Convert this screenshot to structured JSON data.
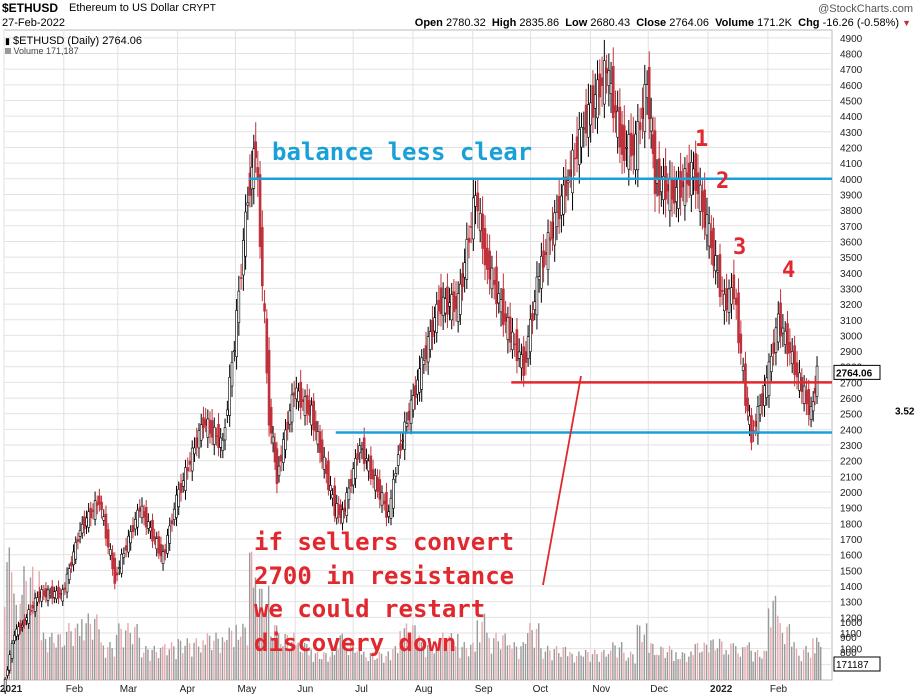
{
  "header": {
    "symbol": "$ETHUSD",
    "description": "Ethereum to US Dollar",
    "exchange": "CRYPT",
    "date": "27-Feb-2022",
    "brand": "@StockCharts.com",
    "open_label": "Open",
    "open": "2780.32",
    "high_label": "High",
    "high": "2835.86",
    "low_label": "Low",
    "low": "2680.43",
    "close_label": "Close",
    "close": "2764.06",
    "volume_label": "Volume",
    "volume": "171.2K",
    "chg_label": "Chg",
    "chg": "-16.26 (-0.58%)"
  },
  "legend": {
    "price": "$ETHUSD (Daily) 2764.06",
    "volume": "Volume 171,187"
  },
  "chart_data": {
    "type": "line",
    "style": "candlestick (daily)",
    "x_labels": [
      "2021",
      "Feb",
      "Mar",
      "Apr",
      "May",
      "Jun",
      "Jul",
      "Aug",
      "Sep",
      "Oct",
      "Nov",
      "Dec",
      "2022",
      "Feb"
    ],
    "y_ticks": [
      "900",
      "1000",
      "1100",
      "1200",
      "1300",
      "1400",
      "1500",
      "1600",
      "1700",
      "1800",
      "1900",
      "2000",
      "2100",
      "2200",
      "2300",
      "2400",
      "2500",
      "2600",
      "2700",
      "2800",
      "2900",
      "3000",
      "3100",
      "3200",
      "3300",
      "3400",
      "3500",
      "3600",
      "3700",
      "3800",
      "3900",
      "4000",
      "4100",
      "4200",
      "4300",
      "4400",
      "4500",
      "4600",
      "4700",
      "4800",
      "4900"
    ],
    "volume_ticks": [
      "800",
      "900",
      "1000"
    ],
    "ylim": [
      800,
      4950
    ],
    "last_price_label": "2764.06",
    "volume_last_label": "171187",
    "right_cut_label": "3.52",
    "series": [
      {
        "dates": [
          "2021-01-01",
          "2021-01-07",
          "2021-01-11",
          "2021-01-20",
          "2021-02-01",
          "2021-02-10",
          "2021-02-20",
          "2021-02-28",
          "2021-03-13",
          "2021-03-25",
          "2021-04-01",
          "2021-04-15",
          "2021-04-25",
          "2021-05-01",
          "2021-05-08",
          "2021-05-12",
          "2021-05-19",
          "2021-05-23",
          "2021-06-01",
          "2021-06-10",
          "2021-06-22",
          "2021-06-26",
          "2021-07-05",
          "2021-07-20",
          "2021-07-25",
          "2021-08-05",
          "2021-08-15",
          "2021-08-25",
          "2021-09-03",
          "2021-09-08",
          "2021-09-21",
          "2021-09-28",
          "2021-10-06",
          "2021-10-21",
          "2021-10-28",
          "2021-11-10",
          "2021-11-18",
          "2021-11-25",
          "2021-12-01",
          "2021-12-05",
          "2021-12-15",
          "2021-12-25",
          "2022-01-01",
          "2022-01-10",
          "2022-01-15",
          "2022-01-21",
          "2022-01-24",
          "2022-02-01",
          "2022-02-07",
          "2022-02-13",
          "2022-02-18",
          "2022-02-24",
          "2022-02-27"
        ],
        "values": [
          730,
          1100,
          1150,
          1350,
          1350,
          1760,
          1950,
          1450,
          1900,
          1580,
          1950,
          2450,
          2300,
          2950,
          3900,
          4200,
          2500,
          2100,
          2650,
          2500,
          1900,
          1850,
          2300,
          1850,
          2250,
          2750,
          3200,
          3200,
          3900,
          3500,
          3000,
          2800,
          3400,
          4000,
          4300,
          4700,
          4200,
          4200,
          4600,
          4000,
          3900,
          4050,
          3700,
          3200,
          3300,
          2600,
          2350,
          2700,
          3100,
          2900,
          2700,
          2500,
          2764
        ]
      }
    ],
    "volume_values": [
      700,
      450,
      600,
      250,
      300,
      350,
      200,
      300,
      180,
      200,
      220,
      250,
      280,
      300,
      700,
      500,
      300,
      250,
      200,
      150,
      250,
      200,
      150,
      180,
      300,
      200,
      250,
      200,
      350,
      250,
      200,
      300,
      180,
      150,
      160,
      200,
      150,
      300,
      200,
      180,
      150,
      200,
      220,
      200,
      180,
      200,
      160,
      450,
      300,
      200,
      180,
      250,
      200
    ],
    "annotations": [
      {
        "text": "balance less clear",
        "color": "#1aa0d8"
      },
      {
        "text": "1",
        "color": "#e0282e"
      },
      {
        "text": "2",
        "color": "#e0282e"
      },
      {
        "text": "3",
        "color": "#e0282e"
      },
      {
        "text": "4",
        "color": "#e0282e"
      },
      {
        "text": "if sellers convert",
        "color": "#e0282e"
      },
      {
        "text": "2700 in resistance",
        "color": "#e0282e"
      },
      {
        "text": "we could restart",
        "color": "#e0282e"
      },
      {
        "text": "discovery down",
        "color": "#e0282e"
      }
    ],
    "levels": [
      {
        "value": 4000,
        "from": "2021-05-08",
        "to": "2022-02-27",
        "color": "#1aa0d8"
      },
      {
        "value": 2700,
        "from": "2021-09-21",
        "to": "2022-02-27",
        "color": "#e0282e"
      },
      {
        "value": 2380,
        "from": "2021-06-22",
        "to": "2022-02-27",
        "color": "#1aa0d8"
      }
    ],
    "colors": {
      "up": "#000000",
      "down": "#c0303a",
      "volume": "#9a9a9a",
      "volume_red": "#e8a8ac",
      "grid": "#e2e2e2"
    }
  }
}
